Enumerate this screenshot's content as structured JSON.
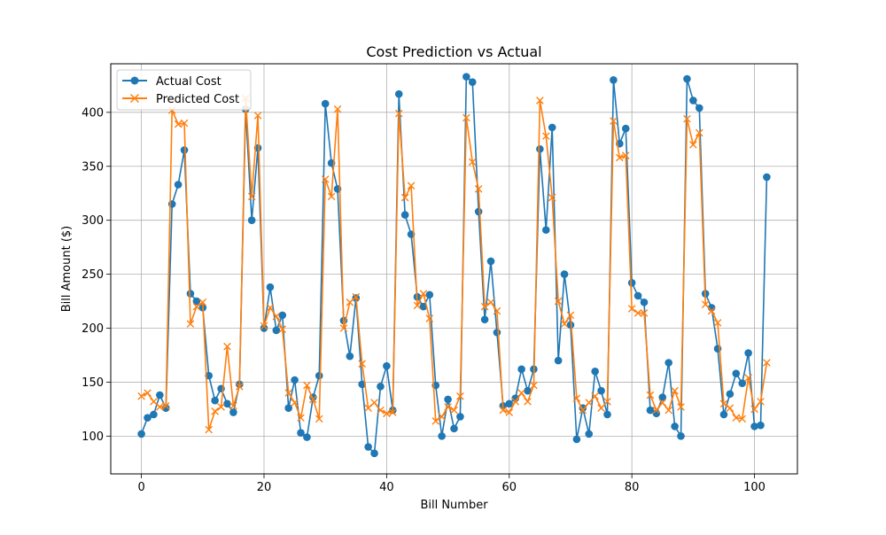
{
  "chart_data": {
    "type": "line",
    "title": "Cost Prediction vs Actual",
    "xlabel": "Bill Number",
    "ylabel": "Bill Amount ($)",
    "xlim": [
      -5,
      107
    ],
    "ylim": [
      65,
      445
    ],
    "xticks": [
      0,
      20,
      40,
      60,
      80,
      100
    ],
    "yticks": [
      100,
      150,
      200,
      250,
      300,
      350,
      400
    ],
    "grid": true,
    "legend": "top-left",
    "x": [
      0,
      1,
      2,
      3,
      4,
      5,
      6,
      7,
      8,
      9,
      10,
      11,
      12,
      13,
      14,
      15,
      16,
      17,
      18,
      19,
      20,
      21,
      22,
      23,
      24,
      25,
      26,
      27,
      28,
      29,
      30,
      31,
      32,
      33,
      34,
      35,
      36,
      37,
      38,
      39,
      40,
      41,
      42,
      43,
      44,
      45,
      46,
      47,
      48,
      49,
      50,
      51,
      52,
      53,
      54,
      55,
      56,
      57,
      58,
      59,
      60,
      61,
      62,
      63,
      64,
      65,
      66,
      67,
      68,
      69,
      70,
      71,
      72,
      73,
      74,
      75,
      76,
      77,
      78,
      79,
      80,
      81,
      82,
      83,
      84,
      85,
      86,
      87,
      88,
      89,
      90,
      91,
      92,
      93,
      94,
      95,
      96,
      97,
      98,
      99,
      100,
      101,
      102
    ],
    "series": [
      {
        "name": "Actual Cost",
        "color": "#1f77b4",
        "marker": "circle",
        "values": [
          102,
          117,
          120,
          138,
          126,
          315,
          333,
          365,
          232,
          225,
          219,
          156,
          133,
          144,
          130,
          122,
          148,
          403,
          300,
          367,
          200,
          238,
          198,
          212,
          126,
          152,
          103,
          99,
          136,
          156,
          408,
          353,
          329,
          207,
          174,
          228,
          148,
          90,
          84,
          146,
          165,
          124,
          417,
          305,
          287,
          229,
          220,
          231,
          147,
          100,
          134,
          107,
          118,
          433,
          428,
          308,
          208,
          262,
          196,
          128,
          130,
          135,
          162,
          142,
          162,
          366,
          291,
          386,
          170,
          250,
          203,
          97,
          126,
          102,
          160,
          142,
          120,
          430,
          371,
          385,
          242,
          230,
          224,
          124,
          121,
          136,
          168,
          109,
          100,
          431,
          411,
          404,
          232,
          219,
          181,
          120,
          139,
          158,
          149,
          177,
          109,
          110,
          340
        ]
      },
      {
        "name": "Predicted Cost",
        "color": "#ff7f0e",
        "marker": "x",
        "values": [
          137,
          140,
          132,
          127,
          128,
          402,
          389,
          390,
          204,
          220,
          224,
          106,
          123,
          127,
          183,
          128,
          146,
          413,
          322,
          397,
          202,
          219,
          211,
          199,
          140,
          131,
          117,
          147,
          134,
          116,
          338,
          322,
          403,
          200,
          224,
          229,
          167,
          126,
          131,
          124,
          121,
          122,
          399,
          321,
          332,
          221,
          232,
          209,
          114,
          118,
          127,
          124,
          137,
          395,
          354,
          329,
          220,
          224,
          216,
          124,
          122,
          132,
          140,
          132,
          147,
          411,
          378,
          321,
          225,
          204,
          212,
          135,
          124,
          131,
          137,
          126,
          132,
          392,
          358,
          360,
          218,
          214,
          214,
          138,
          124,
          131,
          124,
          142,
          127,
          394,
          370,
          381,
          222,
          216,
          205,
          130,
          126,
          117,
          116,
          154,
          125,
          132,
          168
        ]
      }
    ]
  }
}
